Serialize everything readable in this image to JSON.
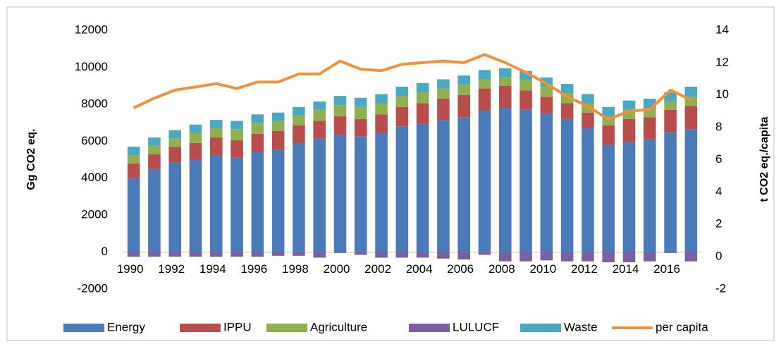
{
  "chart_data": {
    "type": "bar",
    "stacked": true,
    "categories": [
      "1990",
      null,
      "1992",
      null,
      "1994",
      null,
      "1996",
      null,
      "1998",
      null,
      "2000",
      null,
      "2002",
      null,
      "2004",
      null,
      "2006",
      null,
      "2008",
      null,
      "2010",
      null,
      "2012",
      null,
      "2014",
      null,
      "2016",
      null
    ],
    "ylabel": "Gg CO2 eq.",
    "y2label": "t CO2 eq./capita",
    "ylim": [
      -2000,
      12000
    ],
    "yticks": [
      -2000,
      0,
      2000,
      4000,
      6000,
      8000,
      10000,
      12000
    ],
    "y2lim": [
      -2,
      14
    ],
    "y2ticks": [
      -2,
      0,
      2,
      4,
      6,
      8,
      10,
      12,
      14
    ],
    "legend": "bottom",
    "series": [
      {
        "name": "Energy",
        "color": "#4a7ab8",
        "values": [
          4000,
          4500,
          4850,
          5000,
          5250,
          5100,
          5400,
          5550,
          5900,
          6150,
          6350,
          6250,
          6450,
          6800,
          6950,
          7150,
          7300,
          7650,
          7800,
          7700,
          7500,
          7200,
          6700,
          5800,
          5950,
          6100,
          6500,
          6650
        ]
      },
      {
        "name": "IPPU",
        "color": "#b84d4b",
        "values": [
          800,
          800,
          850,
          900,
          950,
          950,
          1000,
          1000,
          950,
          950,
          1000,
          950,
          1000,
          1050,
          1100,
          1150,
          1200,
          1200,
          1200,
          1050,
          900,
          850,
          850,
          1050,
          1250,
          1200,
          1200,
          1250
        ]
      },
      {
        "name": "Agriculture",
        "color": "#90b050",
        "values": [
          450,
          450,
          450,
          550,
          500,
          600,
          600,
          550,
          550,
          600,
          600,
          650,
          600,
          600,
          600,
          550,
          550,
          500,
          450,
          550,
          550,
          550,
          500,
          500,
          500,
          500,
          450,
          500
        ]
      },
      {
        "name": "LULUCF",
        "color": "#7b5fa0",
        "values": [
          -250,
          -250,
          -250,
          -250,
          -250,
          -250,
          -250,
          -200,
          -200,
          -300,
          -50,
          -150,
          -300,
          -300,
          -300,
          -350,
          -400,
          -150,
          -500,
          -500,
          -450,
          -500,
          -500,
          -550,
          -550,
          -500,
          -50,
          -500
        ]
      },
      {
        "name": "Waste",
        "color": "#4aa8c0",
        "values": [
          450,
          450,
          450,
          450,
          450,
          450,
          450,
          450,
          450,
          450,
          500,
          500,
          500,
          500,
          500,
          500,
          500,
          500,
          500,
          500,
          500,
          500,
          500,
          500,
          500,
          500,
          500,
          550
        ]
      },
      {
        "name": "per capita",
        "type": "line",
        "axis": "y2",
        "color": "#f0923c",
        "values": [
          9.2,
          9.8,
          10.3,
          10.5,
          10.7,
          10.4,
          10.8,
          10.8,
          11.3,
          11.3,
          12.1,
          11.6,
          11.5,
          11.9,
          12.0,
          12.1,
          12.0,
          12.5,
          12.0,
          11.4,
          10.7,
          9.9,
          9.3,
          8.5,
          9.0,
          9.1,
          10.3,
          9.7
        ]
      }
    ]
  }
}
